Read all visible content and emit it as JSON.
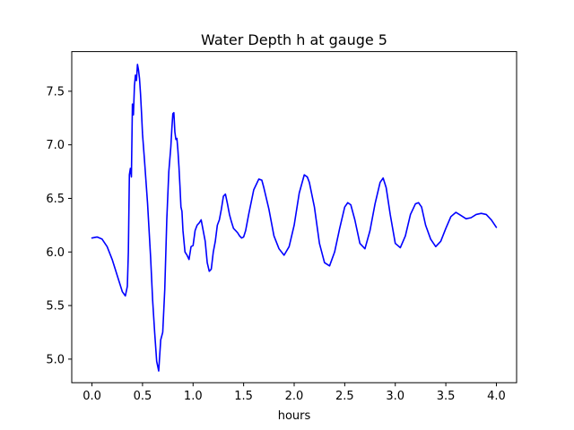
{
  "chart_data": {
    "type": "line",
    "title": "Water Depth h at gauge 5",
    "xlabel": "hours",
    "ylabel": "",
    "xlim": [
      -0.2,
      4.2
    ],
    "ylim": [
      4.78,
      7.87
    ],
    "xticks": [
      0.0,
      0.5,
      1.0,
      1.5,
      2.0,
      2.5,
      3.0,
      3.5,
      4.0
    ],
    "xtick_labels": [
      "0.0",
      "0.5",
      "1.0",
      "1.5",
      "2.0",
      "2.5",
      "3.0",
      "3.5",
      "4.0"
    ],
    "yticks": [
      5.0,
      5.5,
      6.0,
      6.5,
      7.0,
      7.5
    ],
    "ytick_labels": [
      "5.0",
      "5.5",
      "6.0",
      "6.5",
      "7.0",
      "7.5"
    ],
    "grid": false,
    "series": [
      {
        "color": "#0000ff",
        "x": [
          0.0,
          0.05,
          0.1,
          0.15,
          0.2,
          0.25,
          0.3,
          0.33,
          0.35,
          0.36,
          0.37,
          0.38,
          0.39,
          0.4,
          0.41,
          0.42,
          0.43,
          0.44,
          0.45,
          0.46,
          0.47,
          0.48,
          0.49,
          0.5,
          0.52,
          0.55,
          0.58,
          0.6,
          0.62,
          0.64,
          0.66,
          0.68,
          0.7,
          0.72,
          0.74,
          0.76,
          0.78,
          0.79,
          0.8,
          0.81,
          0.82,
          0.83,
          0.84,
          0.85,
          0.86,
          0.87,
          0.88,
          0.89,
          0.9,
          0.92,
          0.94,
          0.96,
          0.98,
          1.0,
          1.02,
          1.04,
          1.06,
          1.08,
          1.1,
          1.12,
          1.14,
          1.16,
          1.18,
          1.2,
          1.22,
          1.24,
          1.26,
          1.28,
          1.3,
          1.32,
          1.34,
          1.36,
          1.38,
          1.4,
          1.42,
          1.44,
          1.46,
          1.48,
          1.5,
          1.52,
          1.55,
          1.6,
          1.65,
          1.68,
          1.7,
          1.75,
          1.8,
          1.85,
          1.9,
          1.95,
          2.0,
          2.05,
          2.1,
          2.13,
          2.15,
          2.2,
          2.25,
          2.3,
          2.35,
          2.4,
          2.45,
          2.5,
          2.53,
          2.56,
          2.6,
          2.65,
          2.7,
          2.75,
          2.8,
          2.85,
          2.88,
          2.91,
          2.95,
          3.0,
          3.05,
          3.1,
          3.15,
          3.2,
          3.23,
          3.26,
          3.3,
          3.35,
          3.4,
          3.45,
          3.5,
          3.55,
          3.6,
          3.65,
          3.7,
          3.75,
          3.8,
          3.85,
          3.9,
          3.95,
          4.0
        ],
        "y": [
          6.13,
          6.14,
          6.12,
          6.05,
          5.93,
          5.78,
          5.63,
          5.59,
          5.68,
          6.0,
          6.72,
          6.78,
          6.7,
          7.38,
          7.28,
          7.55,
          7.65,
          7.6,
          7.75,
          7.7,
          7.62,
          7.48,
          7.3,
          7.1,
          6.85,
          6.45,
          5.95,
          5.55,
          5.25,
          4.98,
          4.89,
          5.18,
          5.25,
          5.65,
          6.3,
          6.75,
          6.98,
          7.15,
          7.29,
          7.3,
          7.12,
          7.05,
          7.06,
          6.95,
          6.8,
          6.62,
          6.42,
          6.38,
          6.2,
          6.0,
          5.97,
          5.93,
          6.05,
          6.06,
          6.2,
          6.25,
          6.27,
          6.3,
          6.2,
          6.1,
          5.9,
          5.82,
          5.84,
          6.0,
          6.1,
          6.25,
          6.3,
          6.4,
          6.52,
          6.54,
          6.45,
          6.35,
          6.28,
          6.22,
          6.2,
          6.18,
          6.15,
          6.13,
          6.14,
          6.2,
          6.35,
          6.58,
          6.68,
          6.67,
          6.6,
          6.4,
          6.15,
          6.03,
          5.97,
          6.05,
          6.25,
          6.55,
          6.72,
          6.7,
          6.65,
          6.42,
          6.08,
          5.9,
          5.87,
          6.0,
          6.22,
          6.42,
          6.46,
          6.44,
          6.3,
          6.08,
          6.03,
          6.2,
          6.45,
          6.65,
          6.69,
          6.6,
          6.35,
          6.08,
          6.04,
          6.15,
          6.35,
          6.45,
          6.46,
          6.42,
          6.25,
          6.12,
          6.05,
          6.1,
          6.22,
          6.33,
          6.37,
          6.34,
          6.31,
          6.32,
          6.35,
          6.36,
          6.35,
          6.3,
          6.23
        ]
      }
    ]
  }
}
